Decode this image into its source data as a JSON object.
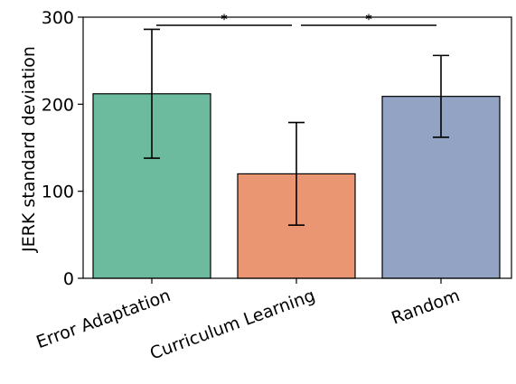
{
  "chart_data": {
    "type": "bar",
    "categories": [
      "Error Adaptation",
      "Curriculum Learning",
      "Random"
    ],
    "values": [
      212,
      120,
      209
    ],
    "error_low": [
      138,
      61,
      162
    ],
    "error_high": [
      286,
      179,
      256
    ],
    "colors": [
      "#6dbb9f",
      "#eb9672",
      "#92a3c4"
    ],
    "ylabel": "JERK standard deviation",
    "xlabel": "",
    "ylim": [
      0,
      300
    ],
    "yticks": [
      0,
      100,
      200,
      300
    ],
    "grid": false,
    "significance": [
      {
        "from": 0,
        "to": 1,
        "label": "*"
      },
      {
        "from": 1,
        "to": 2,
        "label": "*"
      }
    ]
  }
}
